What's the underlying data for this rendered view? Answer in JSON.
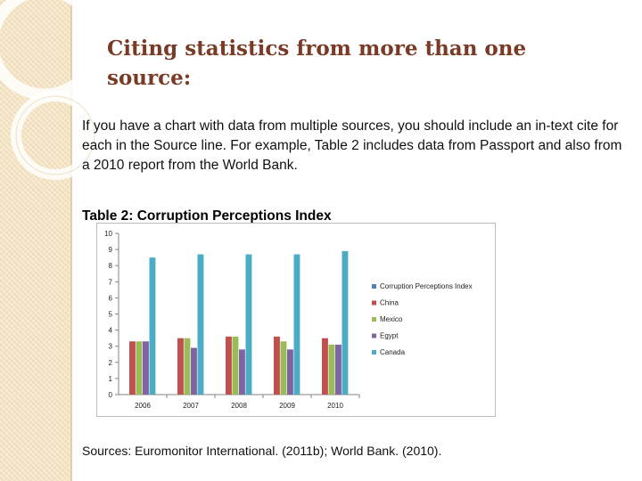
{
  "slide": {
    "title": "Citing statistics from more than one source:",
    "body": "If you have a chart with data from multiple sources, you should include an in-text cite for each in the Source line.  For example, Table 2 includes data from Passport and also from a 2010 report from the World Bank.",
    "table_caption": "Table 2:  Corruption Perceptions Index",
    "sources": "Sources:  Euromonitor International. (2011b); World Bank. (2010)."
  },
  "chart_data": {
    "type": "bar",
    "title": "",
    "xlabel": "",
    "ylabel": "",
    "categories": [
      "2006",
      "2007",
      "2008",
      "2009",
      "2010"
    ],
    "ylim": [
      0,
      10
    ],
    "yticks": [
      0,
      1,
      2,
      3,
      4,
      5,
      6,
      7,
      8,
      9,
      10
    ],
    "grid": false,
    "legend_position": "right",
    "legend_entries": [
      "Corruption Perceptions Index",
      "China",
      "Mexico",
      "Egypt",
      "Canada"
    ],
    "series": [
      {
        "name": "Corruption Perceptions Index",
        "color": "#4f81bd",
        "values": [
          null,
          null,
          null,
          null,
          null
        ]
      },
      {
        "name": "China",
        "color": "#c0504d",
        "values": [
          3.3,
          3.5,
          3.6,
          3.6,
          3.5
        ]
      },
      {
        "name": "Mexico",
        "color": "#9bbb59",
        "values": [
          3.3,
          3.5,
          3.6,
          3.3,
          3.1
        ]
      },
      {
        "name": "Egypt",
        "color": "#8064a2",
        "values": [
          3.3,
          2.9,
          2.8,
          2.8,
          3.1
        ]
      },
      {
        "name": "Canada",
        "color": "#4bacc6",
        "values": [
          8.5,
          8.7,
          8.7,
          8.7,
          8.9
        ]
      }
    ]
  }
}
